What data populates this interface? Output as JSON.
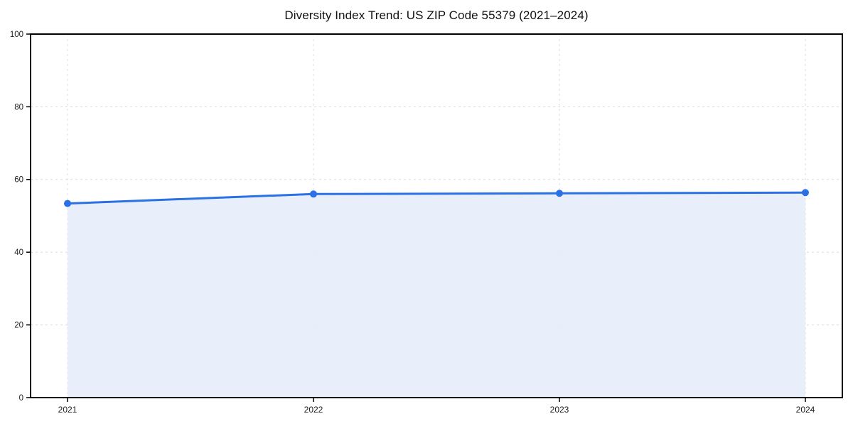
{
  "page": {
    "background": "#ffffff"
  },
  "chart_data": {
    "type": "area",
    "title": "Diversity Index Trend: US ZIP Code 55379 (2021–2024)",
    "categories": [
      "2021",
      "2022",
      "2023",
      "2024"
    ],
    "series": [
      {
        "name": "Diversity Index",
        "values": [
          53.4,
          56.0,
          56.2,
          56.4
        ]
      }
    ],
    "xlabel": "",
    "ylabel": "",
    "ylim": [
      0,
      100
    ],
    "yticks": [
      0,
      20,
      40,
      60,
      80,
      100
    ],
    "ytick_labels": [
      "0",
      "20",
      "40",
      "60",
      "80",
      "100"
    ],
    "grid": true,
    "grid_style": "dashed",
    "legend": false,
    "marker": "circle",
    "colors": {
      "line": "#2a70e6",
      "fill": "#e5edfb",
      "grid": "#dcdcdc",
      "axis": "#000000",
      "text": "#1a1a1a"
    }
  }
}
